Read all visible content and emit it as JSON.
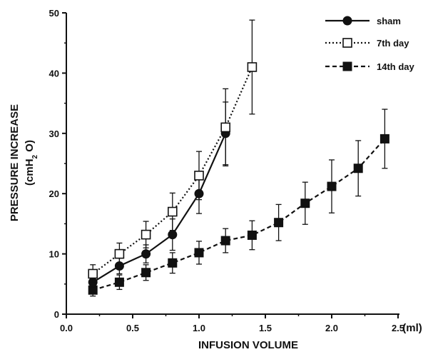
{
  "chart_data": {
    "type": "line",
    "title": "",
    "xlabel": "INFUSION VOLUME",
    "xunit": "(ml)",
    "ylabel_main": "PRESSURE INCREASE",
    "ylabel_unit_pre": "(cmH",
    "ylabel_unit_sub": "2",
    "ylabel_unit_post": " O)",
    "xlim": [
      0.0,
      2.5
    ],
    "ylim": [
      0,
      50
    ],
    "xticks": [
      0.0,
      0.5,
      1.0,
      1.5,
      2.0,
      2.5
    ],
    "xtick_labels": [
      "0.0",
      "0.5",
      "1.0",
      "1.5",
      "2.0",
      "2.5"
    ],
    "yticks": [
      0,
      10,
      20,
      30,
      40,
      50
    ],
    "ytick_labels": [
      "0",
      "10",
      "20",
      "30",
      "40",
      "50"
    ],
    "grid": false,
    "legend_position": "top-right",
    "series": [
      {
        "name": "sham",
        "marker": "filled-circle",
        "line_style": "solid",
        "x": [
          0.2,
          0.4,
          0.6,
          0.8,
          1.0,
          1.2
        ],
        "y": [
          5.3,
          8.0,
          10.0,
          13.2,
          20.0,
          30.0
        ],
        "err": [
          0.8,
          1.3,
          1.5,
          2.6,
          3.3,
          5.2
        ]
      },
      {
        "name": "7th day",
        "marker": "open-square",
        "line_style": "dotted",
        "x": [
          0.2,
          0.4,
          0.6,
          0.8,
          1.0,
          1.2,
          1.4
        ],
        "y": [
          6.7,
          10.0,
          13.2,
          17.0,
          23.0,
          31.0,
          41.0
        ],
        "err": [
          1.5,
          1.8,
          2.2,
          3.1,
          4.0,
          6.4,
          7.8
        ]
      },
      {
        "name": "14th day",
        "marker": "filled-square",
        "line_style": "dashed",
        "x": [
          0.2,
          0.4,
          0.6,
          0.8,
          1.0,
          1.2,
          1.4,
          1.6,
          1.8,
          2.0,
          2.2,
          2.4
        ],
        "y": [
          4.0,
          5.3,
          6.9,
          8.5,
          10.2,
          12.2,
          13.1,
          15.2,
          18.4,
          21.2,
          24.2,
          29.1
        ],
        "err": [
          1.0,
          1.2,
          1.3,
          1.7,
          1.9,
          2.0,
          2.4,
          3.0,
          3.5,
          4.4,
          4.6,
          4.9
        ]
      }
    ]
  }
}
